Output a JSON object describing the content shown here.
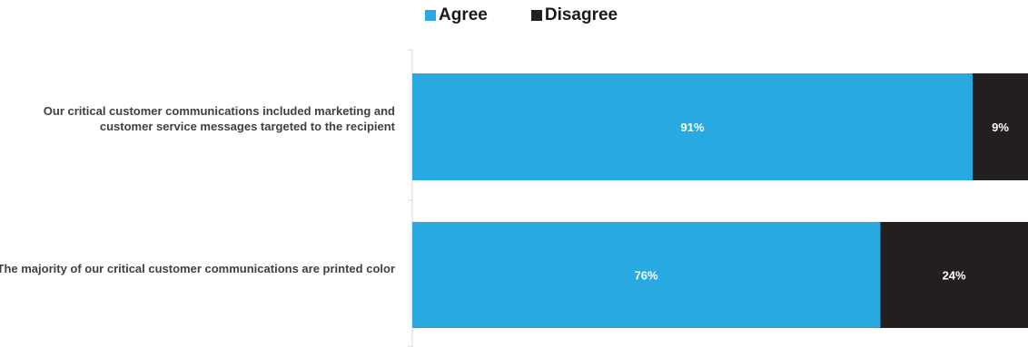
{
  "chart_data": {
    "type": "bar",
    "orientation": "horizontal",
    "stacked": true,
    "percent_stacked": true,
    "categories": [
      "Our critical customer communications included marketing and customer service messages targeted to the recipient",
      "The majority of our critical customer communications are printed color"
    ],
    "series": [
      {
        "name": "Agree",
        "values": [
          91,
          76
        ],
        "labels": [
          "91%",
          "76%"
        ],
        "color": "#29a9e1"
      },
      {
        "name": "Disagree",
        "values": [
          9,
          24
        ],
        "labels": [
          "9%",
          "24%"
        ],
        "color": "#231f20"
      }
    ],
    "xlim": [
      0,
      100
    ],
    "legend_position": "top",
    "grid": false
  },
  "colors": {
    "agree": "#29a9e1",
    "disagree": "#231f20",
    "axis": "#d9d9d9"
  }
}
